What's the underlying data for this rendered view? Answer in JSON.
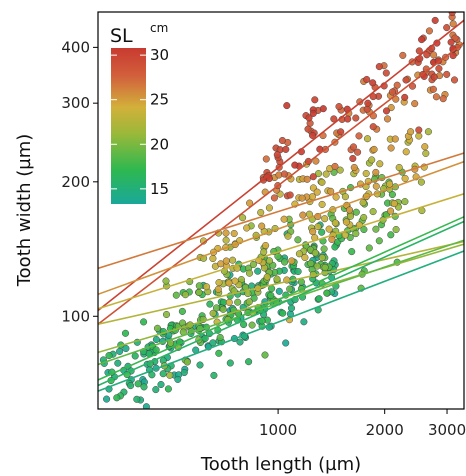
{
  "chart_data": {
    "type": "scatter",
    "title": "",
    "xlabel": "Tooth length (µm)",
    "ylabel": "Tooth width (µm)",
    "x_scale": "log",
    "y_scale": "log",
    "xlim": [
      310,
      3350
    ],
    "ylim": [
      62,
      480
    ],
    "x_ticks": [
      1000,
      2000,
      3000
    ],
    "y_ticks": [
      100,
      200,
      300,
      400
    ],
    "grid": false,
    "legend": {
      "title": "SL",
      "unit": "cm",
      "position": "top-left",
      "range": [
        13.3,
        30.8
      ],
      "ticks": [
        15,
        20,
        25,
        30
      ],
      "colors": [
        "#1aa89a",
        "#2eb84f",
        "#9ab83a",
        "#d2b03a",
        "#d2603c",
        "#c83a30"
      ]
    },
    "fit_lines": [
      {
        "sl": 30.2,
        "x": [
          310,
          3350
        ],
        "y": [
          103,
          460
        ]
      },
      {
        "sl": 29.0,
        "x": [
          310,
          3350
        ],
        "y": [
          96,
          410
        ]
      },
      {
        "sl": 26.5,
        "x": [
          310,
          3350
        ],
        "y": [
          128,
          232
        ]
      },
      {
        "sl": 25.5,
        "x": [
          310,
          3350
        ],
        "y": [
          112,
          222
        ]
      },
      {
        "sl": 23.5,
        "x": [
          310,
          3350
        ],
        "y": [
          104,
          188
        ]
      },
      {
        "sl": 22.5,
        "x": [
          310,
          3350
        ],
        "y": [
          96,
          147
        ]
      },
      {
        "sl": 21.0,
        "x": [
          310,
          3350
        ],
        "y": [
          83,
          145
        ]
      },
      {
        "sl": 19.0,
        "x": [
          310,
          3350
        ],
        "y": [
          78,
          148
        ]
      },
      {
        "sl": 17.5,
        "x": [
          310,
          3350
        ],
        "y": [
          72,
          167
        ]
      },
      {
        "sl": 16.0,
        "x": [
          310,
          3350
        ],
        "y": [
          70,
          163
        ]
      },
      {
        "sl": 14.8,
        "x": [
          310,
          3350
        ],
        "y": [
          68,
          140
        ]
      }
    ],
    "clusters": [
      {
        "sl_min": 13.5,
        "sl_max": 17.5,
        "n": 230,
        "x_range": [
          320,
          1500
        ],
        "y_center_at_400": 77,
        "slope": 0.42,
        "spread": 0.09
      },
      {
        "sl_min": 17.5,
        "sl_max": 21.5,
        "n": 170,
        "x_range": [
          450,
          2300
        ],
        "y_center_at_400": 86,
        "slope": 0.42,
        "spread": 0.09
      },
      {
        "sl_min": 21.5,
        "sl_max": 25.5,
        "n": 150,
        "x_range": [
          600,
          2700
        ],
        "y_center_at_400": 110,
        "slope": 0.38,
        "spread": 0.1
      },
      {
        "sl_min": 25.5,
        "sl_max": 31.0,
        "n": 150,
        "x_range": [
          900,
          3300
        ],
        "y_center_at_400": 128,
        "slope": 0.55,
        "spread": 0.09
      }
    ]
  }
}
